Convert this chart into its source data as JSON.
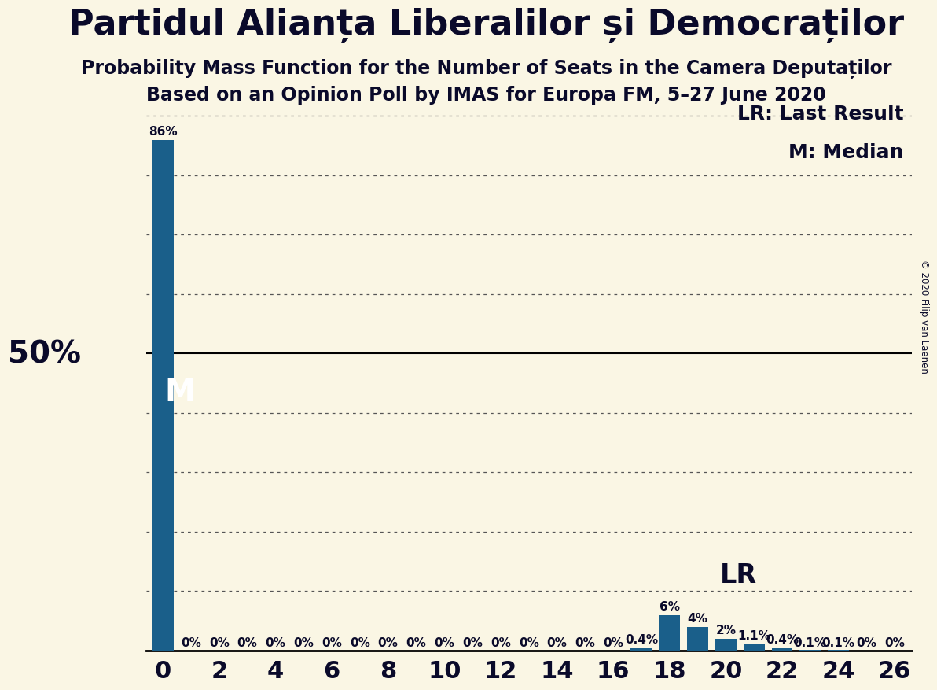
{
  "title": "Partidul Alianța Liberalilor și Democraților",
  "subtitle1": "Probability Mass Function for the Number of Seats in the Camera Deputaților",
  "subtitle2": "Based on an Opinion Poll by IMAS for Europa FM, 5–27 June 2020",
  "copyright": "© 2020 Filip van Laenen",
  "background_color": "#faf6e4",
  "bar_color": "#1a5f8a",
  "seats": [
    0,
    1,
    2,
    3,
    4,
    5,
    6,
    7,
    8,
    9,
    10,
    11,
    12,
    13,
    14,
    15,
    16,
    17,
    18,
    19,
    20,
    21,
    22,
    23,
    24,
    25,
    26
  ],
  "probabilities": [
    0.86,
    0.0,
    0.0,
    0.0,
    0.0,
    0.0,
    0.0,
    0.0,
    0.0,
    0.0,
    0.0,
    0.0,
    0.0,
    0.0,
    0.0,
    0.0,
    0.0,
    0.004,
    0.06,
    0.04,
    0.02,
    0.011,
    0.004,
    0.001,
    0.001,
    0.0,
    0.0
  ],
  "bar_labels": [
    "86%",
    "0%",
    "0%",
    "0%",
    "0%",
    "0%",
    "0%",
    "0%",
    "0%",
    "0%",
    "0%",
    "0%",
    "0%",
    "0%",
    "0%",
    "0%",
    "0%",
    "0.4%",
    "6%",
    "4%",
    "2%",
    "1.1%",
    "0.4%",
    "0.1%",
    "0.1%",
    "0%",
    "0%"
  ],
  "median_seat": 0,
  "last_result_seat": 19,
  "xlim": [
    -0.6,
    26.6
  ],
  "ylim": [
    0,
    0.93
  ],
  "yticks": [
    0.0,
    0.1,
    0.2,
    0.3,
    0.4,
    0.5,
    0.6,
    0.7,
    0.8,
    0.9
  ],
  "xticks": [
    0,
    2,
    4,
    6,
    8,
    10,
    12,
    14,
    16,
    18,
    20,
    22,
    24,
    26
  ],
  "ylabel_50": "50%",
  "label_LR": "LR: Last Result",
  "label_M": "M: Median",
  "grid_color": "#555555",
  "title_fontsize": 32,
  "subtitle_fontsize": 17,
  "axis_tick_fontsize": 22,
  "bar_label_fontsize": 11,
  "legend_fontsize": 18,
  "fifty_label_fontsize": 28,
  "M_fontsize": 28,
  "LR_fontsize": 24
}
